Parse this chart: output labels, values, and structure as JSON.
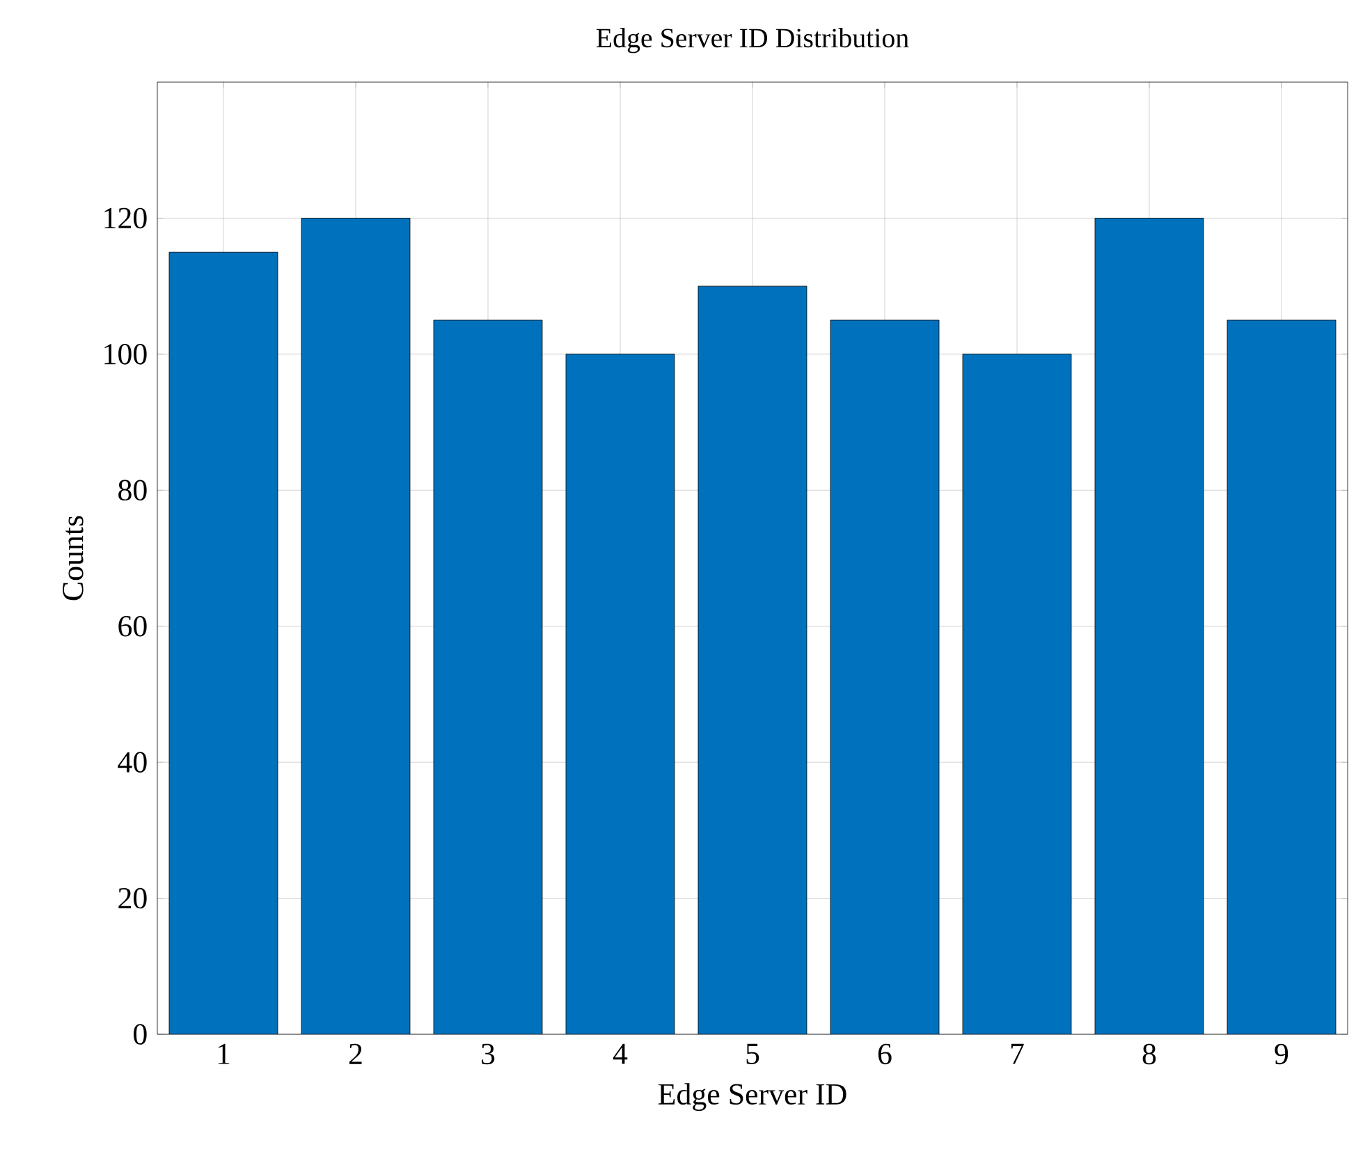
{
  "chart_data": {
    "type": "bar",
    "title": "Edge Server ID Distribution",
    "xlabel": "Edge Server ID",
    "ylabel": "Counts",
    "categories": [
      "1",
      "2",
      "3",
      "4",
      "5",
      "6",
      "7",
      "8",
      "9"
    ],
    "values": [
      115,
      120,
      105,
      100,
      110,
      105,
      100,
      120,
      105
    ],
    "color": "#0072bd",
    "ylim": [
      0,
      140
    ],
    "yticks": [
      0,
      20,
      40,
      60,
      80,
      100,
      120
    ],
    "grid": true
  }
}
